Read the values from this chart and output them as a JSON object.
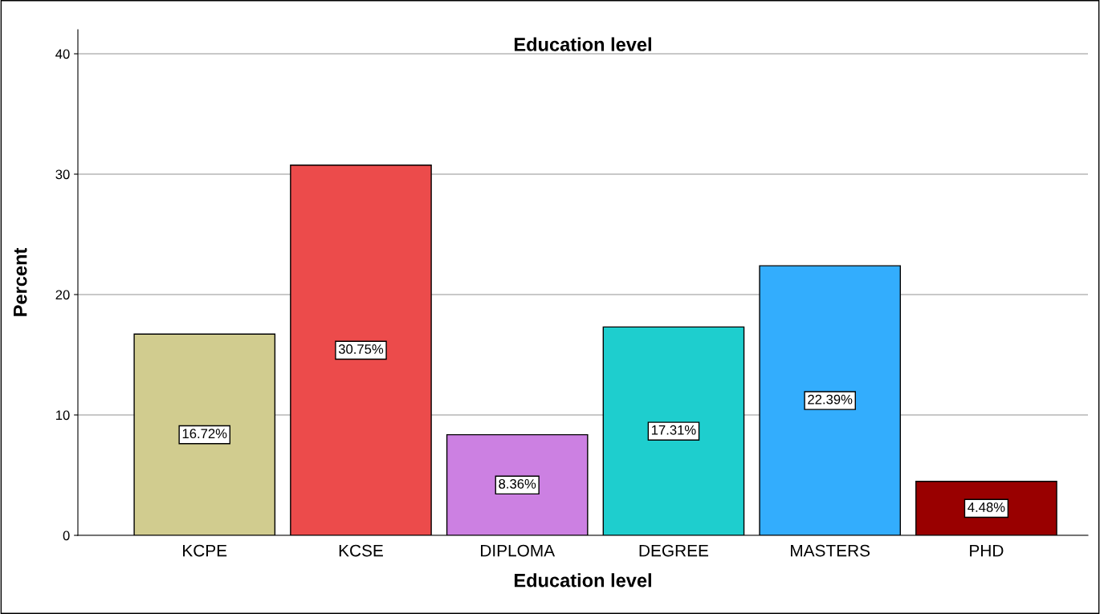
{
  "chart_data": {
    "type": "bar",
    "title": "Education level",
    "xlabel": "Education level",
    "ylabel": "Percent",
    "categories": [
      "KCPE",
      "KCSE",
      "DIPLOMA",
      "DEGREE",
      "MASTERS",
      "PHD"
    ],
    "values": [
      16.72,
      30.75,
      8.36,
      17.31,
      22.39,
      4.48
    ],
    "colors": [
      "#d1cc8f",
      "#ec4b4b",
      "#cc80e2",
      "#1ecece",
      "#33adfd",
      "#990000"
    ],
    "value_labels": [
      "16.72%",
      "30.75%",
      "8.36%",
      "17.31%",
      "22.39%",
      "4.48%"
    ],
    "ylim": [
      0,
      42
    ],
    "yticks": [
      0,
      10,
      20,
      30,
      40
    ],
    "grid": "y"
  }
}
